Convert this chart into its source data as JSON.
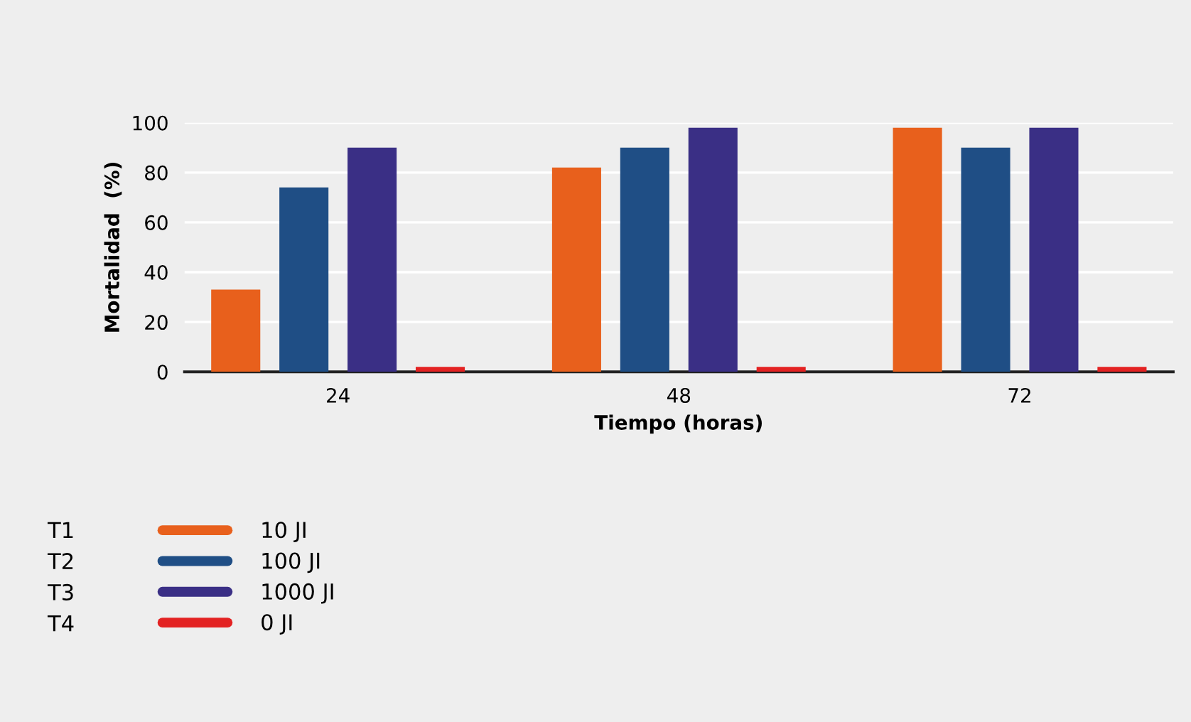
{
  "chart_data": {
    "type": "bar",
    "xlabel": "Tiempo (horas)",
    "ylabel": "Mortalidad  (%)",
    "categories": [
      "24",
      "48",
      "72"
    ],
    "series": [
      {
        "name": "10 JI",
        "color": "#e8601c",
        "values": [
          33,
          82,
          98
        ]
      },
      {
        "name": "100 JI",
        "color": "#1f4e85",
        "values": [
          74,
          90,
          90
        ]
      },
      {
        "name": "1000 JI",
        "color": "#3a2f85",
        "values": [
          90,
          98,
          98
        ]
      },
      {
        "name": "0 JI",
        "color": "#e32222",
        "values": [
          2,
          2,
          2
        ]
      }
    ],
    "ylim": [
      0,
      100
    ],
    "yticks": [
      0,
      20,
      40,
      60,
      80,
      100
    ],
    "grid": "y",
    "legend": "bottom left",
    "annotations": [
      "T1",
      "T2",
      "T3",
      "T4"
    ]
  }
}
